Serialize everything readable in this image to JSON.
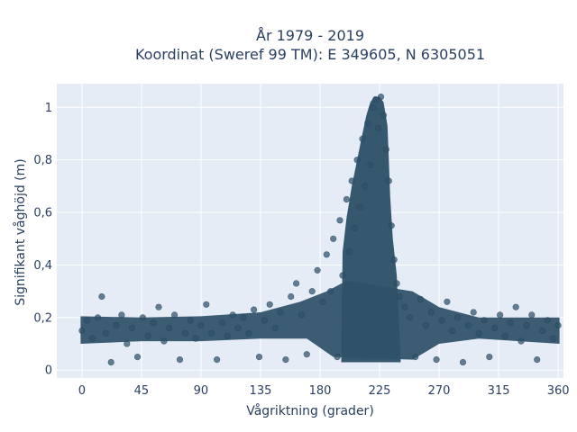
{
  "chart_data": {
    "type": "scatter",
    "title": "År 1979 - 2019",
    "subtitle": "Koordinat (Sweref 99 TM): E 349605, N 6305051",
    "xlabel": "Vågriktning (grader)",
    "ylabel": "Signifikant våghöjd (m)",
    "xlim": [
      -19,
      364
    ],
    "ylim": [
      -0.03,
      1.09
    ],
    "x_ticks": [
      0,
      45,
      90,
      135,
      180,
      225,
      270,
      315,
      360
    ],
    "y_ticks": [
      0,
      0.2,
      0.4,
      0.6,
      0.8,
      1
    ],
    "x_tick_labels": [
      "0",
      "45",
      "90",
      "135",
      "180",
      "225",
      "270",
      "315",
      "360"
    ],
    "y_tick_labels": [
      "0",
      "0,2",
      "0,4",
      "0,6",
      "0,8",
      "1"
    ],
    "grid": true,
    "marker_color": "#2f5169",
    "background_color": "#e5ecf6",
    "series": [
      {
        "points": [
          [
            0,
            0.15
          ],
          [
            4,
            0.19
          ],
          [
            8,
            0.12
          ],
          [
            12,
            0.2
          ],
          [
            15,
            0.28
          ],
          [
            18,
            0.14
          ],
          [
            22,
            0.03
          ],
          [
            26,
            0.17
          ],
          [
            30,
            0.21
          ],
          [
            34,
            0.1
          ],
          [
            38,
            0.16
          ],
          [
            42,
            0.05
          ],
          [
            46,
            0.2
          ],
          [
            50,
            0.13
          ],
          [
            54,
            0.18
          ],
          [
            58,
            0.24
          ],
          [
            62,
            0.11
          ],
          [
            66,
            0.16
          ],
          [
            70,
            0.21
          ],
          [
            74,
            0.04
          ],
          [
            78,
            0.14
          ],
          [
            82,
            0.19
          ],
          [
            86,
            0.12
          ],
          [
            90,
            0.17
          ],
          [
            94,
            0.25
          ],
          [
            98,
            0.14
          ],
          [
            102,
            0.04
          ],
          [
            106,
            0.18
          ],
          [
            110,
            0.13
          ],
          [
            114,
            0.21
          ],
          [
            118,
            0.16
          ],
          [
            122,
            0.2
          ],
          [
            126,
            0.14
          ],
          [
            130,
            0.23
          ],
          [
            134,
            0.05
          ],
          [
            138,
            0.19
          ],
          [
            142,
            0.25
          ],
          [
            146,
            0.16
          ],
          [
            150,
            0.22
          ],
          [
            154,
            0.04
          ],
          [
            158,
            0.28
          ],
          [
            162,
            0.33
          ],
          [
            166,
            0.21
          ],
          [
            170,
            0.06
          ],
          [
            174,
            0.3
          ],
          [
            178,
            0.38
          ],
          [
            182,
            0.26
          ],
          [
            185,
            0.44
          ],
          [
            188,
            0.3
          ],
          [
            190,
            0.5
          ],
          [
            193,
            0.05
          ],
          [
            195,
            0.57
          ],
          [
            197,
            0.36
          ],
          [
            200,
            0.65
          ],
          [
            202,
            0.45
          ],
          [
            204,
            0.72
          ],
          [
            206,
            0.54
          ],
          [
            208,
            0.8
          ],
          [
            210,
            0.62
          ],
          [
            212,
            0.88
          ],
          [
            214,
            0.7
          ],
          [
            216,
            0.94
          ],
          [
            218,
            0.78
          ],
          [
            220,
            1.0
          ],
          [
            222,
            1.03
          ],
          [
            224,
            0.92
          ],
          [
            226,
            1.04
          ],
          [
            228,
            0.97
          ],
          [
            230,
            0.84
          ],
          [
            232,
            0.72
          ],
          [
            234,
            0.55
          ],
          [
            236,
            0.42
          ],
          [
            238,
            0.33
          ],
          [
            240,
            0.28
          ],
          [
            244,
            0.24
          ],
          [
            248,
            0.2
          ],
          [
            252,
            0.05
          ],
          [
            256,
            0.27
          ],
          [
            260,
            0.17
          ],
          [
            264,
            0.22
          ],
          [
            268,
            0.04
          ],
          [
            272,
            0.19
          ],
          [
            276,
            0.26
          ],
          [
            280,
            0.15
          ],
          [
            284,
            0.2
          ],
          [
            288,
            0.03
          ],
          [
            292,
            0.17
          ],
          [
            296,
            0.22
          ],
          [
            300,
            0.14
          ],
          [
            304,
            0.19
          ],
          [
            308,
            0.05
          ],
          [
            312,
            0.16
          ],
          [
            316,
            0.21
          ],
          [
            320,
            0.13
          ],
          [
            324,
            0.18
          ],
          [
            328,
            0.24
          ],
          [
            332,
            0.11
          ],
          [
            336,
            0.17
          ],
          [
            340,
            0.21
          ],
          [
            344,
            0.04
          ],
          [
            348,
            0.15
          ],
          [
            352,
            0.19
          ],
          [
            356,
            0.12
          ],
          [
            360,
            0.17
          ]
        ]
      }
    ]
  }
}
